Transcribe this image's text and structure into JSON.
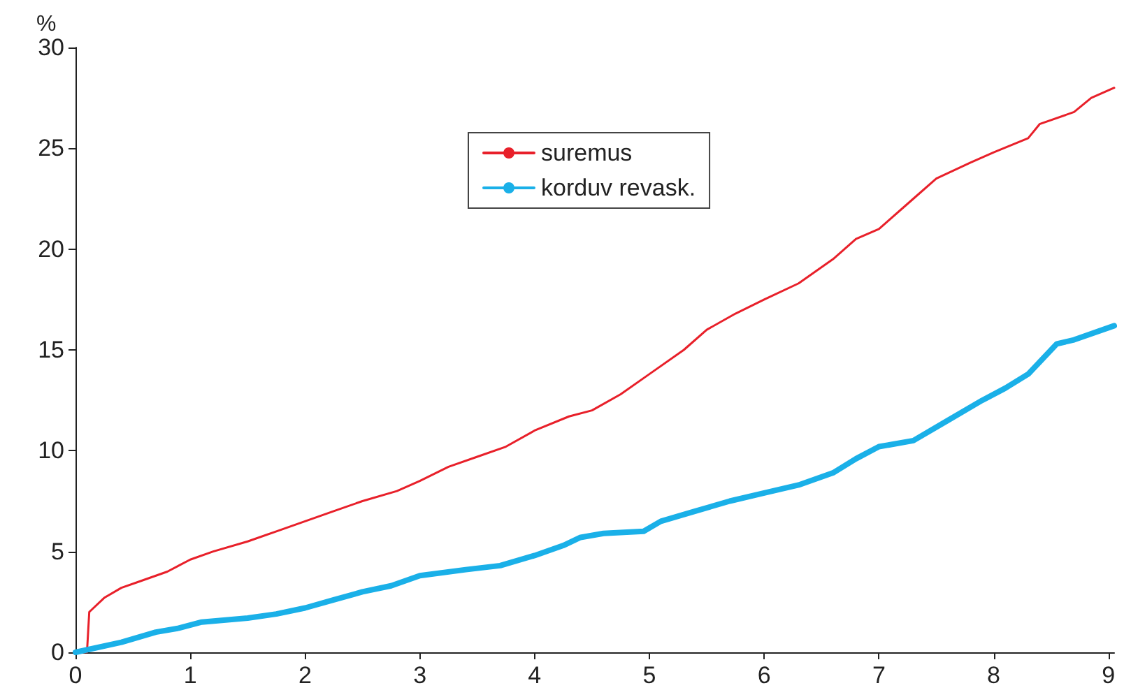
{
  "chart_data": {
    "type": "line",
    "ylabel": "%",
    "xlim": [
      0,
      9.05
    ],
    "xticks": [
      0,
      1,
      2,
      3,
      4,
      5,
      6,
      7,
      8,
      9
    ],
    "ylim": [
      0,
      30
    ],
    "yticks": [
      0,
      5,
      10,
      15,
      20,
      25,
      30
    ],
    "grid": false,
    "legend": "top center",
    "series": [
      {
        "name": "suremus",
        "color": "#e8202a",
        "line_style": "solid",
        "x": [
          0,
          0.1,
          0.12,
          0.25,
          0.4,
          0.55,
          0.8,
          1,
          1.2,
          1.5,
          1.75,
          2,
          2.25,
          2.5,
          2.8,
          3,
          3.25,
          3.5,
          3.75,
          4,
          4.3,
          4.5,
          4.75,
          5,
          5.3,
          5.5,
          5.75,
          6,
          6.3,
          6.6,
          6.8,
          7,
          7.3,
          7.5,
          7.8,
          8,
          8.3,
          8.4,
          8.7,
          8.85,
          9.05
        ],
        "values": [
          0,
          0,
          2,
          2.7,
          3.2,
          3.5,
          4,
          4.6,
          5,
          5.5,
          6,
          6.5,
          7,
          7.5,
          8,
          8.5,
          9.2,
          9.7,
          10.2,
          11,
          11.7,
          12,
          12.8,
          13.8,
          15,
          16,
          16.8,
          17.5,
          18.3,
          19.5,
          20.5,
          21,
          22.5,
          23.5,
          24.3,
          24.8,
          25.5,
          26.2,
          26.8,
          27.5,
          28
        ]
      },
      {
        "name": "korduv revask.",
        "color": "#1ab0e8",
        "line_style": "solid",
        "x": [
          0,
          0.4,
          0.7,
          0.9,
          1.1,
          1.5,
          1.75,
          2,
          2.25,
          2.5,
          2.75,
          3,
          3.4,
          3.7,
          4,
          4.25,
          4.4,
          4.6,
          4.95,
          5.1,
          5.4,
          5.7,
          6,
          6.3,
          6.6,
          6.8,
          7,
          7.3,
          7.6,
          7.9,
          8.1,
          8.3,
          8.55,
          8.7,
          9.05
        ],
        "values": [
          0,
          0.5,
          1,
          1.2,
          1.5,
          1.7,
          1.9,
          2.2,
          2.6,
          3,
          3.3,
          3.8,
          4.1,
          4.3,
          4.8,
          5.3,
          5.7,
          5.9,
          6,
          6.5,
          7,
          7.5,
          7.9,
          8.3,
          8.9,
          9.6,
          10.2,
          10.5,
          11.5,
          12.5,
          13.1,
          13.8,
          15.3,
          15.5,
          16.2
        ]
      }
    ]
  }
}
